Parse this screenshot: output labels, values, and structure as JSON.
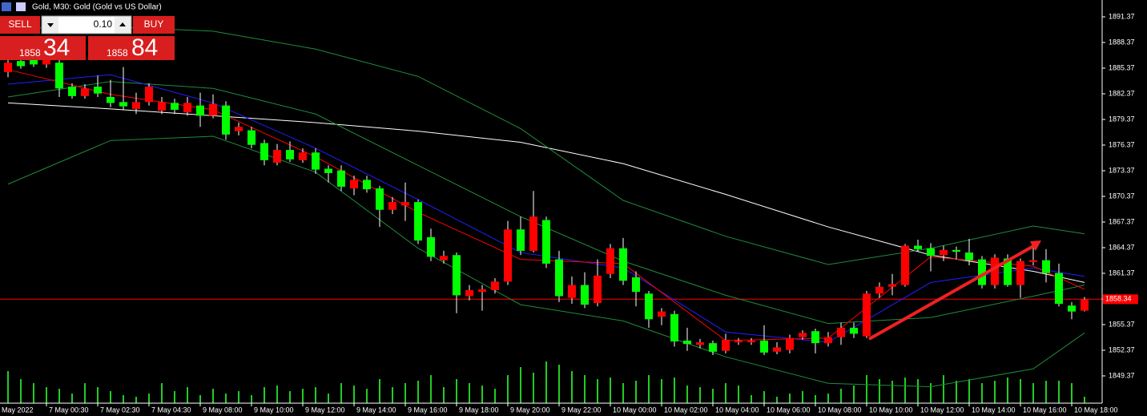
{
  "window_title": "Gold, M30:  Gold (Gold vs US Dollar)",
  "trade_panel": {
    "sell_label": "SELL",
    "buy_label": "BUY",
    "lot": "0.10",
    "sell_price_main": "1858",
    "sell_price_pips": "34",
    "buy_price_main": "1858",
    "buy_price_pips": "84"
  },
  "chart_data": {
    "type": "candlestick",
    "left_edge_label": "May 2022",
    "categories": [
      null,
      null,
      null,
      "7 May 00:30",
      null,
      null,
      null,
      "7 May 02:30",
      null,
      null,
      null,
      "7 May 04:30",
      null,
      null,
      null,
      "9 May 08:00",
      null,
      null,
      null,
      "9 May 10:00",
      null,
      null,
      null,
      "9 May 12:00",
      null,
      null,
      null,
      "9 May 14:00",
      null,
      null,
      null,
      "9 May 16:00",
      null,
      null,
      null,
      "9 May 18:00",
      null,
      null,
      null,
      "9 May 20:00",
      null,
      null,
      null,
      "9 May 22:00",
      null,
      null,
      null,
      "10 May 00:00",
      null,
      null,
      null,
      "10 May 02:00",
      null,
      null,
      null,
      "10 May 04:00",
      null,
      null,
      null,
      "10 May 06:00",
      null,
      null,
      null,
      "10 May 08:00",
      null,
      null,
      null,
      "10 May 10:00",
      null,
      null,
      null,
      "10 May 12:00",
      null,
      null,
      null,
      "10 May 14:00",
      null,
      null,
      null,
      "10 May 16:00",
      null,
      null,
      null,
      "10 May 18:00",
      null
    ],
    "open": [
      1884.9,
      1886.2,
      1886.5,
      1885.8,
      1886.0,
      1883.2,
      1882.1,
      1883.2,
      1882.0,
      1881.4,
      1880.6,
      1881.4,
      1880.4,
      1881.3,
      1880.2,
      1881.0,
      1879.8,
      1881.0,
      1878.0,
      1878.1,
      1876.6,
      1874.3,
      1875.8,
      1874.6,
      1875.5,
      1873.6,
      1873.4,
      1871.3,
      1872.3,
      1871.3,
      1868.8,
      1869.3,
      1869.7,
      1865.6,
      1862.9,
      1863.5,
      1858.7,
      1859.2,
      1859.4,
      1860.4,
      1866.5,
      1864.0,
      1867.6,
      1863.0,
      1858.5,
      1860.0,
      1857.9,
      1861.3,
      1864.3,
      1860.9,
      1859.0,
      1856.3,
      1856.6,
      1853.5,
      1853.0,
      1853.2,
      1852.3,
      1853.3,
      1853.3,
      1853.5,
      1852.2,
      1852.4,
      1853.9,
      1854.6,
      1853.2,
      1853.9,
      1855.0,
      1854.0,
      1859.0,
      1859.8,
      1860.0,
      1864.6,
      1864.3,
      1863.5,
      1864.1,
      1863.8,
      1863.0,
      1860.0,
      1863.1,
      1860.0,
      1862.7,
      1862.9,
      1861.4,
      1857.6,
      1857.0
    ],
    "high": [
      1886.5,
      1886.8,
      1887.0,
      1887.0,
      1887.0,
      1883.6,
      1883.5,
      1884.5,
      1884.0,
      1885.5,
      1882.5,
      1883.6,
      1882.0,
      1881.8,
      1882.0,
      1882.5,
      1882.3,
      1881.5,
      1879.0,
      1878.5,
      1877.0,
      1876.5,
      1876.8,
      1876.0,
      1876.0,
      1874.0,
      1874.0,
      1872.8,
      1872.8,
      1871.6,
      1870.3,
      1872.0,
      1870.0,
      1866.6,
      1864.0,
      1863.8,
      1860.0,
      1860.0,
      1860.8,
      1867.5,
      1868.0,
      1871.0,
      1868.0,
      1864.0,
      1861.0,
      1861.5,
      1863.0,
      1864.8,
      1865.5,
      1861.6,
      1859.3,
      1857.3,
      1857.0,
      1855.0,
      1853.7,
      1853.5,
      1854.3,
      1853.8,
      1853.8,
      1855.3,
      1853.3,
      1854.2,
      1854.7,
      1854.9,
      1854.5,
      1855.6,
      1855.6,
      1859.3,
      1860.3,
      1861.3,
      1864.8,
      1865.3,
      1864.9,
      1864.6,
      1864.5,
      1865.4,
      1863.4,
      1863.6,
      1863.6,
      1863.1,
      1864.5,
      1864.2,
      1862.5,
      1858.0,
      1858.6
    ],
    "low": [
      1884.3,
      1885.3,
      1885.5,
      1885.4,
      1882.0,
      1881.8,
      1881.8,
      1882.0,
      1880.8,
      1880.5,
      1880.0,
      1881.0,
      1880.0,
      1880.0,
      1879.8,
      1878.5,
      1879.5,
      1877.0,
      1877.5,
      1876.0,
      1874.0,
      1874.0,
      1874.4,
      1874.3,
      1873.0,
      1872.0,
      1871.0,
      1870.5,
      1870.8,
      1866.8,
      1868.3,
      1867.5,
      1864.8,
      1862.8,
      1862.5,
      1856.7,
      1858.2,
      1857.0,
      1859.0,
      1860.0,
      1863.5,
      1863.8,
      1862.0,
      1858.0,
      1857.8,
      1857.3,
      1857.5,
      1860.8,
      1860.0,
      1857.5,
      1855.0,
      1855.3,
      1852.8,
      1852.3,
      1852.6,
      1851.8,
      1852.0,
      1853.0,
      1853.0,
      1851.8,
      1851.9,
      1852.0,
      1853.6,
      1852.0,
      1852.8,
      1853.0,
      1853.8,
      1853.8,
      1858.5,
      1858.8,
      1859.8,
      1863.9,
      1861.6,
      1862.8,
      1863.0,
      1862.3,
      1859.6,
      1859.6,
      1859.8,
      1858.5,
      1862.3,
      1860.3,
      1857.5,
      1856.0,
      1856.9
    ],
    "close": [
      1886.0,
      1885.6,
      1885.8,
      1886.4,
      1883.0,
      1882.1,
      1883.0,
      1882.4,
      1881.3,
      1880.9,
      1881.4,
      1883.2,
      1881.4,
      1880.5,
      1881.3,
      1879.8,
      1881.2,
      1877.6,
      1878.5,
      1876.4,
      1874.6,
      1875.8,
      1874.7,
      1875.5,
      1873.5,
      1873.1,
      1871.5,
      1872.3,
      1871.2,
      1868.8,
      1869.7,
      1869.7,
      1865.2,
      1863.3,
      1863.4,
      1858.8,
      1859.4,
      1859.5,
      1860.4,
      1866.5,
      1864.0,
      1868.0,
      1862.5,
      1858.7,
      1860.0,
      1857.7,
      1861.1,
      1864.3,
      1860.5,
      1859.2,
      1856.0,
      1856.9,
      1853.4,
      1853.1,
      1853.3,
      1852.2,
      1853.6,
      1853.5,
      1853.5,
      1852.1,
      1852.7,
      1853.8,
      1854.4,
      1853.2,
      1853.9,
      1855.0,
      1854.3,
      1859.0,
      1859.8,
      1860.1,
      1864.6,
      1864.2,
      1863.4,
      1864.1,
      1863.9,
      1862.9,
      1860.0,
      1863.2,
      1860.0,
      1862.8,
      1862.9,
      1861.4,
      1857.8,
      1856.9,
      1858.3
    ],
    "up_color": "#ff0000",
    "down_color": "#00ff00",
    "wick_color": "#ffffff",
    "line_x": [
      0,
      8,
      16,
      24,
      32,
      40,
      48,
      56,
      64,
      72,
      80,
      84
    ],
    "lines": [
      {
        "color": "#ffffff",
        "values": [
          1881.3,
          1880.6,
          1879.8,
          1879.0,
          1878.0,
          1876.7,
          1874.2,
          1870.6,
          1866.8,
          1863.5,
          1861.6,
          1860.3
        ]
      },
      {
        "color": "#1e8c3c",
        "values": [
          1890.0,
          1890.2,
          1889.7,
          1887.6,
          1884.4,
          1878.3,
          1869.9,
          1865.7,
          1862.4,
          1864.3,
          1866.9,
          1866.0
        ]
      },
      {
        "color": "#1e8c3c",
        "values": [
          1882.0,
          1883.8,
          1883.0,
          1880.0,
          1874.0,
          1868.0,
          1862.8,
          1858.8,
          1855.5,
          1856.2,
          1858.7,
          1860.0
        ]
      },
      {
        "color": "#1e8c3c",
        "values": [
          1871.8,
          1876.9,
          1877.4,
          1873.2,
          1864.3,
          1857.7,
          1855.8,
          1851.6,
          1848.5,
          1848.1,
          1850.2,
          1854.4
        ]
      },
      {
        "color": "#2020ff",
        "values": [
          1883.5,
          1884.6,
          1881.3,
          1876.0,
          1870.0,
          1863.8,
          1862.0,
          1854.5,
          1853.3,
          1860.3,
          1862.0,
          1861.0
        ]
      },
      {
        "color": "#ff0000",
        "values": [
          1885.2,
          1882.3,
          1880.5,
          1875.0,
          1868.5,
          1863.0,
          1862.5,
          1853.5,
          1853.8,
          1863.3,
          1862.2,
          1859.5
        ]
      }
    ],
    "current_price": 1858.34,
    "current_price_color": "#ff0000",
    "volume": [
      40,
      30,
      25,
      20,
      18,
      12,
      25,
      20,
      15,
      10,
      8,
      12,
      25,
      15,
      20,
      10,
      18,
      12,
      15,
      10,
      20,
      22,
      15,
      18,
      20,
      12,
      25,
      22,
      18,
      30,
      20,
      25,
      28,
      35,
      20,
      30,
      25,
      22,
      18,
      35,
      45,
      38,
      52,
      48,
      40,
      35,
      30,
      32,
      25,
      28,
      35,
      30,
      32,
      22,
      20,
      18,
      25,
      22,
      10,
      15,
      8,
      12,
      15,
      10,
      12,
      18,
      22,
      35,
      30,
      28,
      32,
      30,
      25,
      35,
      28,
      30,
      25,
      28,
      32,
      30,
      25,
      28,
      28,
      25,
      8
    ],
    "volume_lim": [
      0,
      100
    ],
    "volume_color": "#22cc22",
    "ylim": [
      1846.46,
      1893.34
    ],
    "yticks": [
      1891.37,
      1888.37,
      1885.37,
      1882.37,
      1879.37,
      1876.37,
      1873.37,
      1870.37,
      1867.37,
      1864.37,
      1861.37,
      1858.37,
      1855.37,
      1852.37,
      1849.37
    ]
  }
}
